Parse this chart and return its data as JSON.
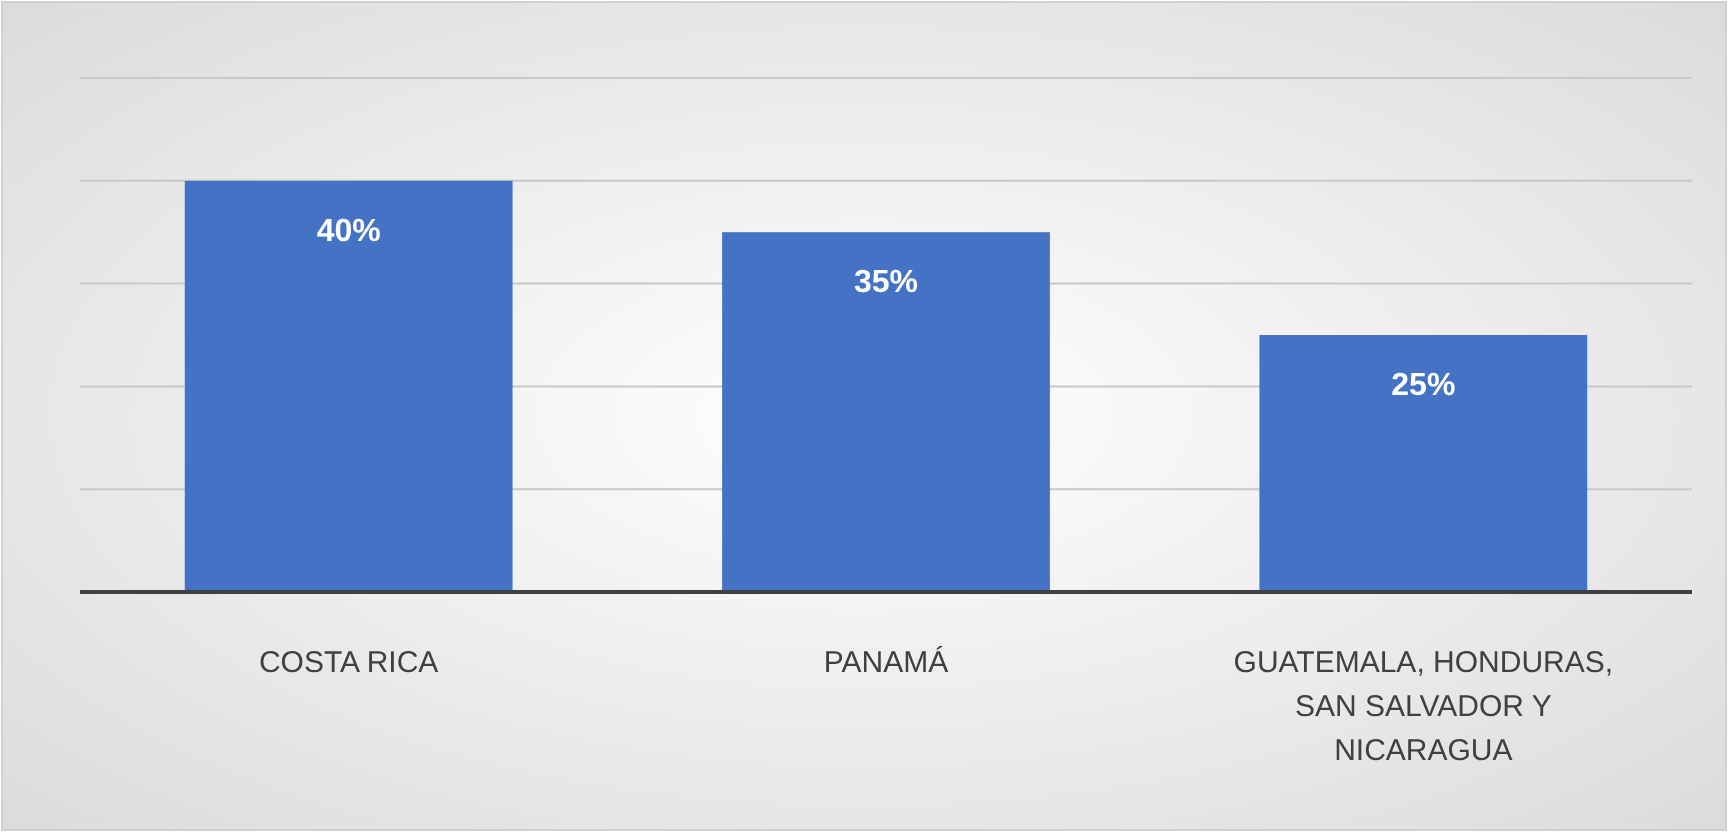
{
  "chart_data": {
    "type": "bar",
    "categories": [
      "COSTA RICA",
      "PANAMÁ",
      "GUATEMALA, HONDURAS, SAN SALVADOR Y NICARAGUA"
    ],
    "values": [
      40,
      35,
      25
    ],
    "value_labels": [
      "40%",
      "35%",
      "25%"
    ],
    "color": "#4472c4",
    "ylim": [
      0,
      50
    ],
    "yticks": [
      {
        "value": 0,
        "label": null
      },
      {
        "value": 10,
        "label": null
      },
      {
        "value": 20,
        "label": null
      },
      {
        "value": 30,
        "label": null
      },
      {
        "value": 40,
        "label": null
      },
      {
        "value": 50,
        "label": null
      }
    ],
    "grid": "y",
    "tick_labels": "x"
  }
}
